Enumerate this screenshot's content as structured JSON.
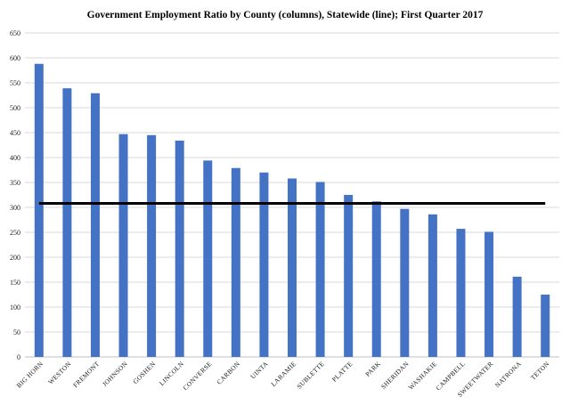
{
  "chart_data": {
    "type": "bar",
    "title": "Government Employment Ratio by County (columns), Statewide (line); First Quarter 2017",
    "xlabel": "",
    "ylabel": "",
    "ylim": [
      0,
      650
    ],
    "yticks": [
      0,
      50,
      100,
      150,
      200,
      250,
      300,
      350,
      400,
      450,
      500,
      550,
      600,
      650
    ],
    "grid": true,
    "legend": "none",
    "categories": [
      "BIG HORN",
      "WESTON",
      "FREMONT",
      "JOHNSON",
      "GOSHEN",
      "LINCOLN",
      "CONVERSE",
      "CARBON",
      "UINTA",
      "LARAMIE",
      "SUBLETTE",
      "PLATTE",
      "PARK",
      "SHERIDAN",
      "WASHAKIE",
      "CAMPBELL",
      "SWEETWATER",
      "NATRONA",
      "TETON"
    ],
    "series": [
      {
        "type": "bar",
        "color": "#4472c4",
        "values": [
          588,
          539,
          529,
          447,
          445,
          434,
          394,
          379,
          370,
          358,
          351,
          325,
          312,
          297,
          286,
          257,
          251,
          161,
          125
        ]
      },
      {
        "type": "line",
        "color": "#000000",
        "values": [
          308,
          308,
          308,
          308,
          308,
          308,
          308,
          308,
          308,
          308,
          308,
          308,
          308,
          308,
          308,
          308,
          308,
          308,
          308
        ]
      }
    ]
  }
}
